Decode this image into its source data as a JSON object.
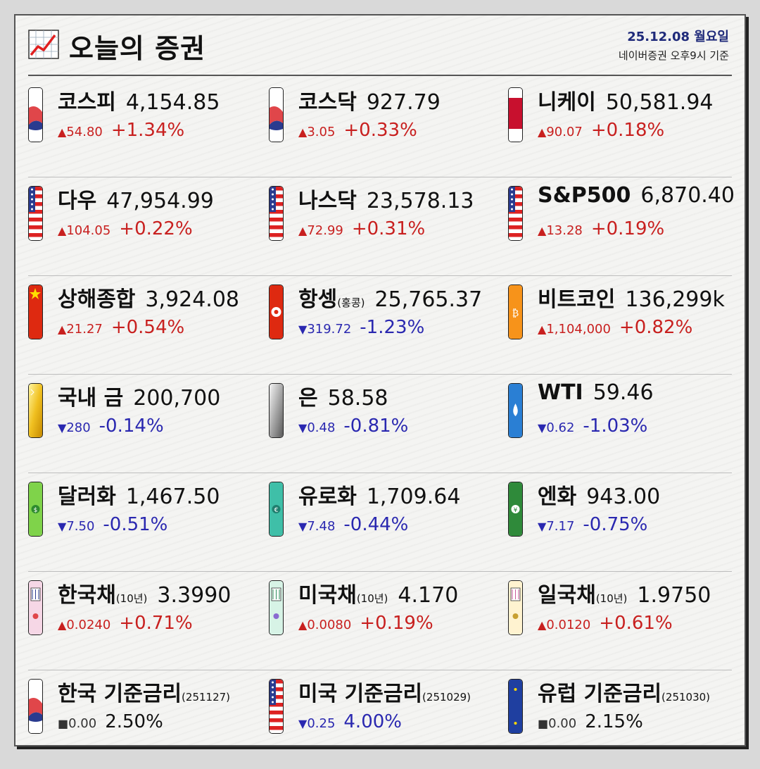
{
  "header": {
    "title": "오늘의 증권",
    "date": "25.12.08 월요일",
    "source": "네이버증권 오후9시 기준"
  },
  "items": [
    {
      "name": "코스피",
      "sub": "",
      "price": "4,154.85",
      "arrow": "▲",
      "abs": "54.80",
      "pct": "+1.34%",
      "dir": "up",
      "icon": "korea-flag-icon"
    },
    {
      "name": "코스닥",
      "sub": "",
      "price": "927.79",
      "arrow": "▲",
      "abs": "3.05",
      "pct": "+0.33%",
      "dir": "up",
      "icon": "korea-flag-icon"
    },
    {
      "name": "니케이",
      "sub": "",
      "price": "50,581.94",
      "arrow": "▲",
      "abs": "90.07",
      "pct": "+0.18%",
      "dir": "up",
      "icon": "japan-flag-icon"
    },
    {
      "name": "다우",
      "sub": "",
      "price": "47,954.99",
      "arrow": "▲",
      "abs": "104.05",
      "pct": "+0.22%",
      "dir": "up",
      "icon": "us-flag-icon"
    },
    {
      "name": "나스닥",
      "sub": "",
      "price": "23,578.13",
      "arrow": "▲",
      "abs": "72.99",
      "pct": "+0.31%",
      "dir": "up",
      "icon": "us-flag-icon"
    },
    {
      "name": "S&P500",
      "sub": "",
      "price": "6,870.40",
      "arrow": "▲",
      "abs": "13.28",
      "pct": "+0.19%",
      "dir": "up",
      "icon": "us-flag-icon"
    },
    {
      "name": "상해종합",
      "sub": "",
      "price": "3,924.08",
      "arrow": "▲",
      "abs": "21.27",
      "pct": "+0.54%",
      "dir": "up",
      "icon": "china-flag-icon"
    },
    {
      "name": "항셍",
      "sub": "(홍콩)",
      "price": "25,765.37",
      "arrow": "▼",
      "abs": "319.72",
      "pct": "-1.23%",
      "dir": "down",
      "icon": "hongkong-flag-icon"
    },
    {
      "name": "비트코인",
      "sub": "",
      "price": "136,299k",
      "arrow": "▲",
      "abs": "1,104,000",
      "pct": "+0.82%",
      "dir": "up",
      "icon": "bitcoin-icon"
    },
    {
      "name": "국내 금",
      "sub": "",
      "price": "200,700",
      "arrow": "▼",
      "abs": "280",
      "pct": "-0.14%",
      "dir": "down",
      "icon": "gold-bar-icon"
    },
    {
      "name": "은",
      "sub": "",
      "price": "58.58",
      "arrow": "▼",
      "abs": "0.48",
      "pct": "-0.81%",
      "dir": "down",
      "icon": "silver-bar-icon"
    },
    {
      "name": "WTI",
      "sub": "",
      "price": "59.46",
      "arrow": "▼",
      "abs": "0.62",
      "pct": "-1.03%",
      "dir": "down",
      "icon": "oil-drop-icon"
    },
    {
      "name": "달러화",
      "sub": "",
      "price": "1,467.50",
      "arrow": "▼",
      "abs": "7.50",
      "pct": "-0.51%",
      "dir": "down",
      "icon": "dollar-bill-icon"
    },
    {
      "name": "유로화",
      "sub": "",
      "price": "1,709.64",
      "arrow": "▼",
      "abs": "7.48",
      "pct": "-0.44%",
      "dir": "down",
      "icon": "euro-bill-icon"
    },
    {
      "name": "엔화",
      "sub": "",
      "price": "943.00",
      "arrow": "▼",
      "abs": "7.17",
      "pct": "-0.75%",
      "dir": "down",
      "icon": "yen-bill-icon"
    },
    {
      "name": "한국채",
      "sub": "(10년)",
      "price": "3.3990",
      "arrow": "▲",
      "abs": "0.0240",
      "pct": "+0.71%",
      "dir": "up",
      "icon": "korea-bond-icon"
    },
    {
      "name": "미국채",
      "sub": "(10년)",
      "price": "4.170",
      "arrow": "▲",
      "abs": "0.0080",
      "pct": "+0.19%",
      "dir": "up",
      "icon": "us-bond-icon"
    },
    {
      "name": "일국채",
      "sub": "(10년)",
      "price": "1.9750",
      "arrow": "▲",
      "abs": "0.0120",
      "pct": "+0.61%",
      "dir": "up",
      "icon": "japan-bond-icon"
    },
    {
      "name": "한국 기준금리",
      "sub": "(251127)",
      "price": "",
      "arrow": "■",
      "abs": "0.00",
      "pct": "2.50%",
      "dir": "flat",
      "icon": "korea-flag-icon"
    },
    {
      "name": "미국 기준금리",
      "sub": "(251029)",
      "price": "",
      "arrow": "▼",
      "abs": "0.25",
      "pct": "4.00%",
      "dir": "down",
      "icon": "us-flag-icon"
    },
    {
      "name": "유럽 기준금리",
      "sub": "(251030)",
      "price": "",
      "arrow": "■",
      "abs": "0.00",
      "pct": "2.15%",
      "dir": "flat",
      "icon": "eu-flag-icon"
    }
  ],
  "colors": {
    "up": "#c8201f",
    "down": "#2a28b0",
    "flat": "#333333",
    "title_date": "#1f2a7a"
  }
}
